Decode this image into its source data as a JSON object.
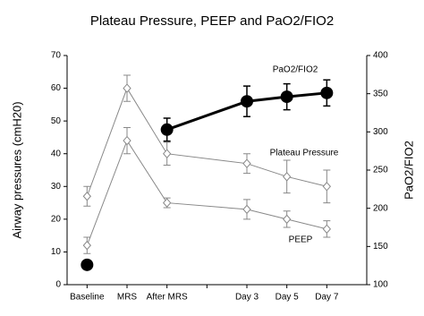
{
  "chart_data": {
    "type": "line",
    "title": "Plateau Pressure, PEEP and PaO2/FIO2",
    "y_label": "Airway  pressures (cmH20)",
    "y2_label": "PaO2/FIO2",
    "x": [
      0,
      1,
      2,
      4,
      5,
      6
    ],
    "xlim": [
      -0.5,
      7
    ],
    "xticks": [
      {
        "value": 0,
        "label": "Baseline"
      },
      {
        "value": 1,
        "label": "MRS"
      },
      {
        "value": 2,
        "label": "After MRS"
      },
      {
        "value": 3,
        "label": null
      },
      {
        "value": 4,
        "label": "Day 3"
      },
      {
        "value": 5,
        "label": "Day 5"
      },
      {
        "value": 6,
        "label": "Day 7"
      }
    ],
    "ylim": [
      0,
      70
    ],
    "yticks": [
      0,
      10,
      20,
      30,
      40,
      50,
      60,
      70
    ],
    "y2lim": [
      100,
      400
    ],
    "y2ticks": [
      100,
      150,
      200,
      250,
      300,
      350,
      400
    ],
    "series": [
      {
        "name": "Plateau Pressure",
        "color": "#888888",
        "marker": "diamond",
        "values": [
          27,
          60,
          40,
          37,
          33,
          30
        ],
        "errors": [
          3,
          4,
          3.5,
          3,
          5,
          5
        ]
      },
      {
        "name": "PEEP",
        "color": "#888888",
        "marker": "diamond",
        "values": [
          12,
          44,
          25,
          23,
          20,
          17
        ],
        "errors": [
          2.5,
          4,
          1.5,
          3,
          2.5,
          2.5
        ]
      },
      {
        "name": "PaO2/FIO2",
        "color": "#000000",
        "marker": "circle",
        "axis": "y2",
        "values": [
          126,
          null,
          303,
          340,
          346,
          351
        ],
        "errors": [
          null,
          null,
          15,
          20,
          17,
          17
        ]
      }
    ]
  }
}
